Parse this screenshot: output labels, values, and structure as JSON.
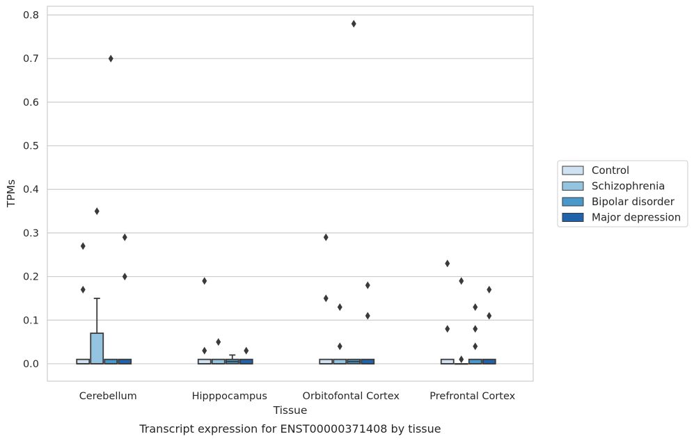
{
  "chart_data": {
    "type": "box",
    "title": "",
    "caption": "Transcript expression for ENST00000371408 by tissue",
    "xlabel": "Tissue",
    "ylabel": "TPMs",
    "ylim": [
      -0.04,
      0.82
    ],
    "yticks": [
      "0.0",
      "0.1",
      "0.2",
      "0.3",
      "0.4",
      "0.5",
      "0.6",
      "0.7",
      "0.8"
    ],
    "ytick_values": [
      0.0,
      0.1,
      0.2,
      0.3,
      0.4,
      0.5,
      0.6,
      0.7,
      0.8
    ],
    "categories": [
      "Cerebellum",
      "Hipppocampus",
      "Orbitofontal Cortex",
      "Prefrontal Cortex"
    ],
    "grid": true,
    "legend_position": "right",
    "series": [
      {
        "name": "Control",
        "color": "#d0e1f2",
        "boxes": [
          {
            "q1": 0.0,
            "median": 0.0,
            "q3": 0.01,
            "whisker_low": 0.0,
            "whisker_high": 0.01,
            "outliers": [
              0.17,
              0.27
            ]
          },
          {
            "q1": 0.0,
            "median": 0.0,
            "q3": 0.01,
            "whisker_low": 0.0,
            "whisker_high": 0.01,
            "outliers": [
              0.03,
              0.19
            ]
          },
          {
            "q1": 0.0,
            "median": 0.0,
            "q3": 0.01,
            "whisker_low": 0.0,
            "whisker_high": 0.01,
            "outliers": [
              0.15,
              0.29
            ]
          },
          {
            "q1": 0.0,
            "median": 0.0,
            "q3": 0.01,
            "whisker_low": 0.0,
            "whisker_high": 0.01,
            "outliers": [
              0.08,
              0.23
            ]
          }
        ]
      },
      {
        "name": "Schizophrenia",
        "color": "#94c4df",
        "boxes": [
          {
            "q1": 0.0,
            "median": 0.0,
            "q3": 0.07,
            "whisker_low": 0.0,
            "whisker_high": 0.15,
            "outliers": [
              0.35
            ]
          },
          {
            "q1": 0.0,
            "median": 0.0,
            "q3": 0.01,
            "whisker_low": 0.0,
            "whisker_high": 0.01,
            "outliers": [
              0.05
            ]
          },
          {
            "q1": 0.0,
            "median": 0.0,
            "q3": 0.01,
            "whisker_low": 0.0,
            "whisker_high": 0.01,
            "outliers": [
              0.04,
              0.13
            ]
          },
          {
            "q1": 0.0,
            "median": 0.0,
            "q3": 0.0,
            "whisker_low": 0.0,
            "whisker_high": 0.0,
            "outliers": [
              0.01,
              0.19
            ]
          }
        ]
      },
      {
        "name": "Bipolar disorder",
        "color": "#4a98c9",
        "boxes": [
          {
            "q1": 0.0,
            "median": 0.0,
            "q3": 0.01,
            "whisker_low": 0.0,
            "whisker_high": 0.01,
            "outliers": [
              0.7
            ]
          },
          {
            "q1": 0.0,
            "median": 0.005,
            "q3": 0.01,
            "whisker_low": 0.0,
            "whisker_high": 0.02,
            "outliers": []
          },
          {
            "q1": 0.0,
            "median": 0.005,
            "q3": 0.01,
            "whisker_low": 0.0,
            "whisker_high": 0.01,
            "outliers": [
              0.78
            ]
          },
          {
            "q1": 0.0,
            "median": 0.0,
            "q3": 0.01,
            "whisker_low": 0.0,
            "whisker_high": 0.01,
            "outliers": [
              0.04,
              0.08,
              0.13
            ]
          }
        ]
      },
      {
        "name": "Major depression",
        "color": "#2163aa",
        "boxes": [
          {
            "q1": 0.0,
            "median": 0.0,
            "q3": 0.01,
            "whisker_low": 0.0,
            "whisker_high": 0.01,
            "outliers": [
              0.2,
              0.29
            ]
          },
          {
            "q1": 0.0,
            "median": 0.0,
            "q3": 0.01,
            "whisker_low": 0.0,
            "whisker_high": 0.01,
            "outliers": [
              0.03
            ]
          },
          {
            "q1": 0.0,
            "median": 0.0,
            "q3": 0.01,
            "whisker_low": 0.0,
            "whisker_high": 0.01,
            "outliers": [
              0.11,
              0.18
            ]
          },
          {
            "q1": 0.0,
            "median": 0.0,
            "q3": 0.01,
            "whisker_low": 0.0,
            "whisker_high": 0.01,
            "outliers": [
              0.11,
              0.17
            ]
          }
        ]
      }
    ]
  }
}
